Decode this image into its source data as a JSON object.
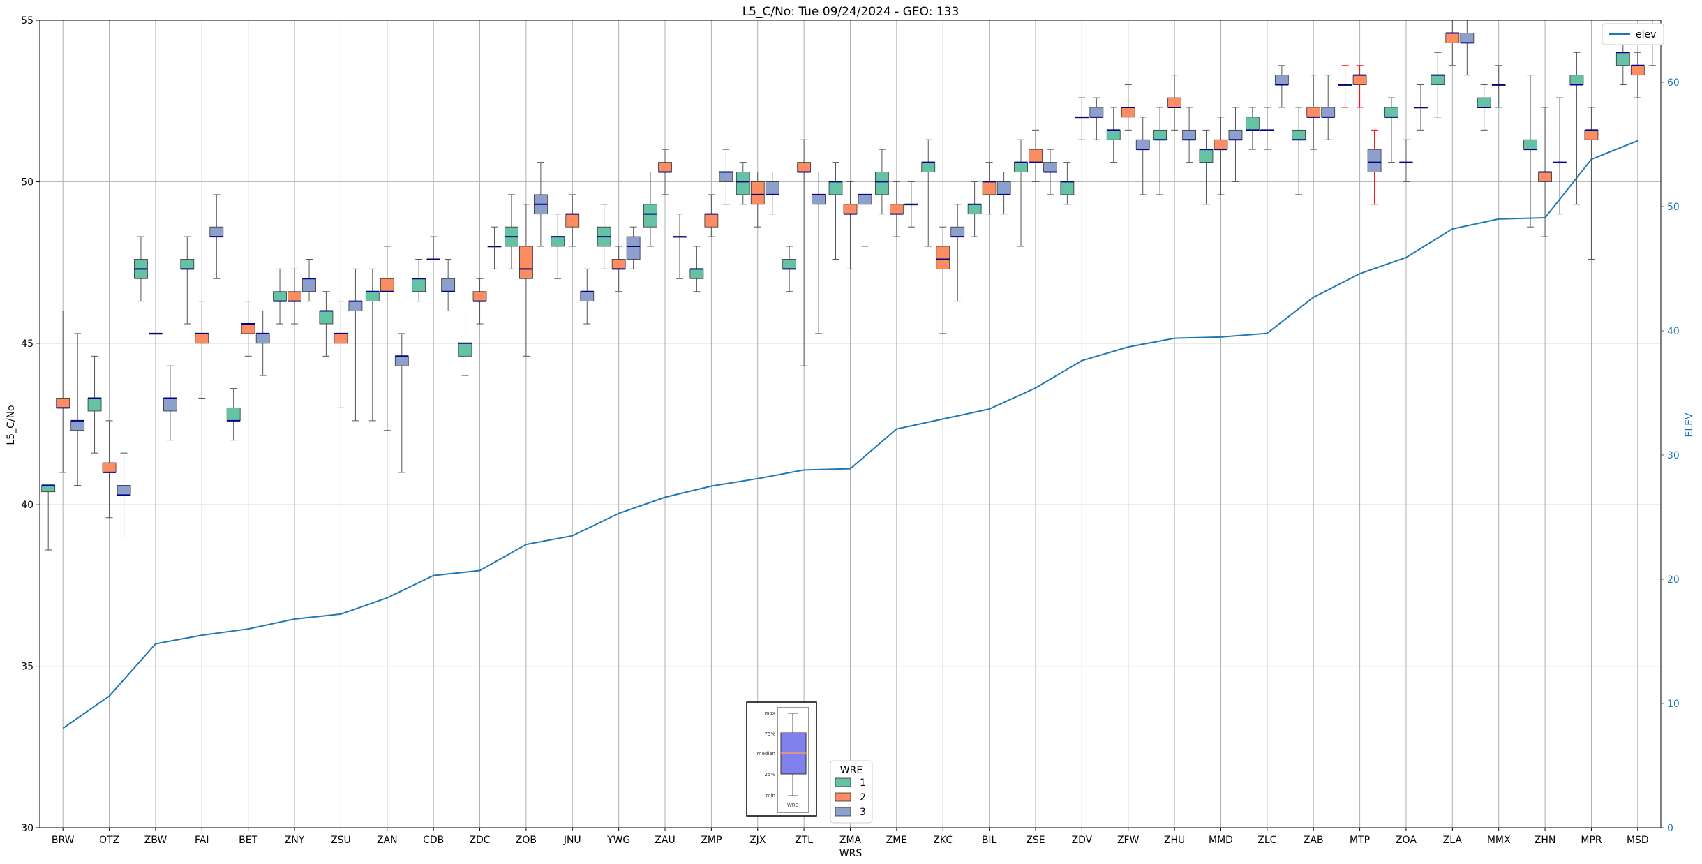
{
  "chart_data": {
    "type": "box",
    "title": "L5_C/No: Tue 09/24/2024 - GEO: 133",
    "xlabel": "WRS",
    "ylabel": "L5_C/No",
    "y2label": "ELEV",
    "ylim": [
      30,
      55
    ],
    "y2lim": [
      0,
      65
    ],
    "yticks": [
      30,
      35,
      40,
      45,
      50,
      55
    ],
    "y2ticks": [
      0,
      10,
      20,
      30,
      40,
      50,
      60
    ],
    "grid": true,
    "categories": [
      "BRW",
      "OTZ",
      "ZBW",
      "FAI",
      "BET",
      "ZNY",
      "ZSU",
      "ZAN",
      "CDB",
      "ZDC",
      "ZOB",
      "JNU",
      "YWG",
      "ZAU",
      "ZMP",
      "ZJX",
      "ZTL",
      "ZMA",
      "ZME",
      "ZKC",
      "BIL",
      "ZSE",
      "ZDV",
      "ZFW",
      "ZHU",
      "MMD",
      "ZLC",
      "ZAB",
      "MTP",
      "ZOA",
      "ZLA",
      "MMX",
      "ZHN",
      "MPR",
      "MSD"
    ],
    "wre_colors": {
      "1": "#66c2a5",
      "2": "#fc8d62",
      "3": "#8da0cb"
    },
    "median_color": "#00008b",
    "outlier_whisker_color": "#ff0000",
    "boxes": [
      {
        "station": "BRW",
        "wre": 1,
        "min": 38.6,
        "q1": 40.4,
        "median": 40.6,
        "q3": 40.6,
        "max": 40.6
      },
      {
        "station": "BRW",
        "wre": 2,
        "min": 41.0,
        "q1": 43.0,
        "median": 43.0,
        "q3": 43.3,
        "max": 46.0
      },
      {
        "station": "BRW",
        "wre": 3,
        "min": 40.6,
        "q1": 42.3,
        "median": 42.6,
        "q3": 42.6,
        "max": 45.3
      },
      {
        "station": "OTZ",
        "wre": 1,
        "min": 41.6,
        "q1": 42.9,
        "median": 43.3,
        "q3": 43.3,
        "max": 44.6
      },
      {
        "station": "OTZ",
        "wre": 2,
        "min": 39.6,
        "q1": 41.0,
        "median": 41.0,
        "q3": 41.3,
        "max": 42.6
      },
      {
        "station": "OTZ",
        "wre": 3,
        "min": 39.0,
        "q1": 40.3,
        "median": 40.3,
        "q3": 40.6,
        "max": 41.6
      },
      {
        "station": "ZBW",
        "wre": 1,
        "min": 46.3,
        "q1": 47.0,
        "median": 47.3,
        "q3": 47.6,
        "max": 48.3
      },
      {
        "station": "ZBW",
        "wre": 2,
        "min": 45.3,
        "q1": 45.3,
        "median": 45.3,
        "q3": 45.3,
        "max": 45.3
      },
      {
        "station": "ZBW",
        "wre": 3,
        "min": 42.0,
        "q1": 42.9,
        "median": 43.3,
        "q3": 43.3,
        "max": 44.3
      },
      {
        "station": "FAI",
        "wre": 1,
        "min": 45.6,
        "q1": 47.3,
        "median": 47.3,
        "q3": 47.6,
        "max": 48.3
      },
      {
        "station": "FAI",
        "wre": 2,
        "min": 43.3,
        "q1": 45.0,
        "median": 45.3,
        "q3": 45.3,
        "max": 46.3
      },
      {
        "station": "FAI",
        "wre": 3,
        "min": 47.0,
        "q1": 48.3,
        "median": 48.3,
        "q3": 48.6,
        "max": 49.6
      },
      {
        "station": "BET",
        "wre": 1,
        "min": 42.0,
        "q1": 42.6,
        "median": 42.6,
        "q3": 43.0,
        "max": 43.6
      },
      {
        "station": "BET",
        "wre": 2,
        "min": 44.6,
        "q1": 45.3,
        "median": 45.6,
        "q3": 45.6,
        "max": 46.3
      },
      {
        "station": "BET",
        "wre": 3,
        "min": 44.0,
        "q1": 45.0,
        "median": 45.3,
        "q3": 45.3,
        "max": 46.0
      },
      {
        "station": "ZNY",
        "wre": 1,
        "min": 45.6,
        "q1": 46.3,
        "median": 46.3,
        "q3": 46.6,
        "max": 47.3
      },
      {
        "station": "ZNY",
        "wre": 2,
        "min": 45.6,
        "q1": 46.3,
        "median": 46.3,
        "q3": 46.6,
        "max": 47.3
      },
      {
        "station": "ZNY",
        "wre": 3,
        "min": 46.3,
        "q1": 46.6,
        "median": 47.0,
        "q3": 47.0,
        "max": 47.6
      },
      {
        "station": "ZSU",
        "wre": 1,
        "min": 44.6,
        "q1": 45.6,
        "median": 46.0,
        "q3": 46.0,
        "max": 46.6
      },
      {
        "station": "ZSU",
        "wre": 2,
        "min": 43.0,
        "q1": 45.0,
        "median": 45.3,
        "q3": 45.3,
        "max": 46.3
      },
      {
        "station": "ZSU",
        "wre": 3,
        "min": 42.6,
        "q1": 46.0,
        "median": 46.3,
        "q3": 46.3,
        "max": 47.3
      },
      {
        "station": "ZAN",
        "wre": 1,
        "min": 42.6,
        "q1": 46.3,
        "median": 46.6,
        "q3": 46.6,
        "max": 47.3
      },
      {
        "station": "ZAN",
        "wre": 2,
        "min": 42.3,
        "q1": 46.6,
        "median": 46.6,
        "q3": 47.0,
        "max": 48.0
      },
      {
        "station": "ZAN",
        "wre": 3,
        "min": 41.0,
        "q1": 44.3,
        "median": 44.6,
        "q3": 44.6,
        "max": 45.3
      },
      {
        "station": "CDB",
        "wre": 1,
        "min": 46.3,
        "q1": 46.6,
        "median": 47.0,
        "q3": 47.0,
        "max": 47.6
      },
      {
        "station": "CDB",
        "wre": 2,
        "min": 47.6,
        "q1": 47.6,
        "median": 47.6,
        "q3": 47.6,
        "max": 48.3
      },
      {
        "station": "CDB",
        "wre": 3,
        "min": 46.0,
        "q1": 46.6,
        "median": 46.6,
        "q3": 47.0,
        "max": 47.6
      },
      {
        "station": "ZDC",
        "wre": 1,
        "min": 44.0,
        "q1": 44.6,
        "median": 45.0,
        "q3": 45.0,
        "max": 46.0
      },
      {
        "station": "ZDC",
        "wre": 2,
        "min": 45.6,
        "q1": 46.3,
        "median": 46.3,
        "q3": 46.6,
        "max": 47.0
      },
      {
        "station": "ZDC",
        "wre": 3,
        "min": 47.3,
        "q1": 48.0,
        "median": 48.0,
        "q3": 48.0,
        "max": 48.6
      },
      {
        "station": "ZOB",
        "wre": 1,
        "min": 47.3,
        "q1": 48.0,
        "median": 48.3,
        "q3": 48.6,
        "max": 49.6
      },
      {
        "station": "ZOB",
        "wre": 2,
        "min": 44.6,
        "q1": 47.0,
        "median": 47.3,
        "q3": 48.0,
        "max": 49.3
      },
      {
        "station": "ZOB",
        "wre": 3,
        "min": 48.0,
        "q1": 49.0,
        "median": 49.3,
        "q3": 49.6,
        "max": 50.6
      },
      {
        "station": "JNU",
        "wre": 1,
        "min": 47.0,
        "q1": 48.0,
        "median": 48.3,
        "q3": 48.3,
        "max": 49.0
      },
      {
        "station": "JNU",
        "wre": 2,
        "min": 48.0,
        "q1": 48.6,
        "median": 49.0,
        "q3": 49.0,
        "max": 49.6
      },
      {
        "station": "JNU",
        "wre": 3,
        "min": 45.6,
        "q1": 46.3,
        "median": 46.6,
        "q3": 46.6,
        "max": 47.3
      },
      {
        "station": "YWG",
        "wre": 1,
        "min": 47.3,
        "q1": 48.0,
        "median": 48.3,
        "q3": 48.6,
        "max": 49.3
      },
      {
        "station": "YWG",
        "wre": 2,
        "min": 46.6,
        "q1": 47.3,
        "median": 47.3,
        "q3": 47.6,
        "max": 48.0
      },
      {
        "station": "YWG",
        "wre": 3,
        "min": 47.3,
        "q1": 47.6,
        "median": 48.0,
        "q3": 48.3,
        "max": 48.6
      },
      {
        "station": "ZAU",
        "wre": 1,
        "min": 48.0,
        "q1": 48.6,
        "median": 49.0,
        "q3": 49.3,
        "max": 50.3
      },
      {
        "station": "ZAU",
        "wre": 2,
        "min": 49.6,
        "q1": 50.3,
        "median": 50.3,
        "q3": 50.6,
        "max": 51.0
      },
      {
        "station": "ZAU",
        "wre": 3,
        "min": 47.0,
        "q1": 48.3,
        "median": 48.3,
        "q3": 48.3,
        "max": 49.0
      },
      {
        "station": "ZMP",
        "wre": 1,
        "min": 46.6,
        "q1": 47.0,
        "median": 47.3,
        "q3": 47.3,
        "max": 48.0
      },
      {
        "station": "ZMP",
        "wre": 2,
        "min": 48.3,
        "q1": 48.6,
        "median": 49.0,
        "q3": 49.0,
        "max": 49.6
      },
      {
        "station": "ZMP",
        "wre": 3,
        "min": 49.3,
        "q1": 50.0,
        "median": 50.3,
        "q3": 50.3,
        "max": 51.0
      },
      {
        "station": "ZJX",
        "wre": 1,
        "min": 49.3,
        "q1": 49.6,
        "median": 50.0,
        "q3": 50.3,
        "max": 50.6
      },
      {
        "station": "ZJX",
        "wre": 2,
        "min": 48.6,
        "q1": 49.3,
        "median": 49.6,
        "q3": 50.0,
        "max": 50.3
      },
      {
        "station": "ZJX",
        "wre": 3,
        "min": 49.0,
        "q1": 49.6,
        "median": 49.6,
        "q3": 50.0,
        "max": 50.3
      },
      {
        "station": "ZTL",
        "wre": 1,
        "min": 46.6,
        "q1": 47.3,
        "median": 47.3,
        "q3": 47.6,
        "max": 48.0
      },
      {
        "station": "ZTL",
        "wre": 2,
        "min": 44.3,
        "q1": 50.3,
        "median": 50.3,
        "q3": 50.6,
        "max": 51.3
      },
      {
        "station": "ZTL",
        "wre": 3,
        "min": 45.3,
        "q1": 49.3,
        "median": 49.6,
        "q3": 49.6,
        "max": 50.3
      },
      {
        "station": "ZMA",
        "wre": 1,
        "min": 47.6,
        "q1": 49.6,
        "median": 50.0,
        "q3": 50.0,
        "max": 50.6
      },
      {
        "station": "ZMA",
        "wre": 2,
        "min": 47.3,
        "q1": 49.0,
        "median": 49.0,
        "q3": 49.3,
        "max": 50.0
      },
      {
        "station": "ZMA",
        "wre": 3,
        "min": 48.0,
        "q1": 49.3,
        "median": 49.6,
        "q3": 49.6,
        "max": 50.3
      },
      {
        "station": "ZME",
        "wre": 1,
        "min": 49.0,
        "q1": 49.6,
        "median": 50.0,
        "q3": 50.3,
        "max": 51.0
      },
      {
        "station": "ZME",
        "wre": 2,
        "min": 48.3,
        "q1": 49.0,
        "median": 49.0,
        "q3": 49.3,
        "max": 50.0
      },
      {
        "station": "ZME",
        "wre": 3,
        "min": 48.6,
        "q1": 49.3,
        "median": 49.3,
        "q3": 49.3,
        "max": 50.0
      },
      {
        "station": "ZKC",
        "wre": 1,
        "min": 48.0,
        "q1": 50.3,
        "median": 50.6,
        "q3": 50.6,
        "max": 51.3
      },
      {
        "station": "ZKC",
        "wre": 2,
        "min": 45.3,
        "q1": 47.3,
        "median": 47.6,
        "q3": 48.0,
        "max": 48.6
      },
      {
        "station": "ZKC",
        "wre": 3,
        "min": 46.3,
        "q1": 48.3,
        "median": 48.3,
        "q3": 48.6,
        "max": 49.3
      },
      {
        "station": "BIL",
        "wre": 1,
        "min": 48.3,
        "q1": 49.0,
        "median": 49.3,
        "q3": 49.3,
        "max": 50.0
      },
      {
        "station": "BIL",
        "wre": 2,
        "min": 49.0,
        "q1": 49.6,
        "median": 50.0,
        "q3": 50.0,
        "max": 50.6
      },
      {
        "station": "BIL",
        "wre": 3,
        "min": 49.0,
        "q1": 49.6,
        "median": 49.6,
        "q3": 50.0,
        "max": 50.3
      },
      {
        "station": "ZSE",
        "wre": 1,
        "min": 48.0,
        "q1": 50.3,
        "median": 50.6,
        "q3": 50.6,
        "max": 51.3
      },
      {
        "station": "ZSE",
        "wre": 2,
        "min": 50.0,
        "q1": 50.6,
        "median": 50.6,
        "q3": 51.0,
        "max": 51.6
      },
      {
        "station": "ZSE",
        "wre": 3,
        "min": 49.6,
        "q1": 50.3,
        "median": 50.3,
        "q3": 50.6,
        "max": 51.0
      },
      {
        "station": "ZDV",
        "wre": 1,
        "min": 49.3,
        "q1": 49.6,
        "median": 50.0,
        "q3": 50.0,
        "max": 50.6
      },
      {
        "station": "ZDV",
        "wre": 2,
        "min": 51.3,
        "q1": 52.0,
        "median": 52.0,
        "q3": 52.0,
        "max": 52.6
      },
      {
        "station": "ZDV",
        "wre": 3,
        "min": 51.3,
        "q1": 52.0,
        "median": 52.0,
        "q3": 52.3,
        "max": 52.6
      },
      {
        "station": "ZFW",
        "wre": 1,
        "min": 50.6,
        "q1": 51.3,
        "median": 51.6,
        "q3": 51.6,
        "max": 52.3
      },
      {
        "station": "ZFW",
        "wre": 2,
        "min": 51.6,
        "q1": 52.0,
        "median": 52.3,
        "q3": 52.3,
        "max": 53.0
      },
      {
        "station": "ZFW",
        "wre": 3,
        "min": 49.6,
        "q1": 51.0,
        "median": 51.0,
        "q3": 51.3,
        "max": 52.0
      },
      {
        "station": "ZHU",
        "wre": 1,
        "min": 49.6,
        "q1": 51.3,
        "median": 51.3,
        "q3": 51.6,
        "max": 52.3
      },
      {
        "station": "ZHU",
        "wre": 2,
        "min": 51.6,
        "q1": 52.3,
        "median": 52.3,
        "q3": 52.6,
        "max": 53.3
      },
      {
        "station": "ZHU",
        "wre": 3,
        "min": 50.6,
        "q1": 51.3,
        "median": 51.3,
        "q3": 51.6,
        "max": 52.3
      },
      {
        "station": "MMD",
        "wre": 1,
        "min": 49.3,
        "q1": 50.6,
        "median": 51.0,
        "q3": 51.0,
        "max": 51.6
      },
      {
        "station": "MMD",
        "wre": 2,
        "min": 49.6,
        "q1": 51.0,
        "median": 51.0,
        "q3": 51.3,
        "max": 52.0
      },
      {
        "station": "MMD",
        "wre": 3,
        "min": 50.0,
        "q1": 51.3,
        "median": 51.3,
        "q3": 51.6,
        "max": 52.3
      },
      {
        "station": "ZLC",
        "wre": 1,
        "min": 51.0,
        "q1": 51.6,
        "median": 51.6,
        "q3": 52.0,
        "max": 52.3
      },
      {
        "station": "ZLC",
        "wre": 2,
        "min": 51.0,
        "q1": 51.6,
        "median": 51.6,
        "q3": 51.6,
        "max": 52.3
      },
      {
        "station": "ZLC",
        "wre": 3,
        "min": 52.3,
        "q1": 53.0,
        "median": 53.0,
        "q3": 53.3,
        "max": 53.6
      },
      {
        "station": "ZAB",
        "wre": 1,
        "min": 49.6,
        "q1": 51.3,
        "median": 51.3,
        "q3": 51.6,
        "max": 52.3
      },
      {
        "station": "ZAB",
        "wre": 2,
        "min": 51.0,
        "q1": 52.0,
        "median": 52.0,
        "q3": 52.3,
        "max": 53.3
      },
      {
        "station": "ZAB",
        "wre": 3,
        "min": 51.3,
        "q1": 52.0,
        "median": 52.0,
        "q3": 52.3,
        "max": 53.3
      },
      {
        "station": "MTP",
        "wre": 1,
        "min": 52.3,
        "q1": 53.0,
        "median": 53.0,
        "q3": 53.0,
        "max": 53.6,
        "red": true
      },
      {
        "station": "MTP",
        "wre": 2,
        "min": 52.3,
        "q1": 53.0,
        "median": 53.3,
        "q3": 53.3,
        "max": 53.6,
        "red": true
      },
      {
        "station": "MTP",
        "wre": 3,
        "min": 49.3,
        "q1": 50.3,
        "median": 50.6,
        "q3": 51.0,
        "max": 51.6,
        "red": true
      },
      {
        "station": "ZOA",
        "wre": 1,
        "min": 50.6,
        "q1": 52.0,
        "median": 52.0,
        "q3": 52.3,
        "max": 52.6
      },
      {
        "station": "ZOA",
        "wre": 2,
        "min": 50.0,
        "q1": 50.6,
        "median": 50.6,
        "q3": 50.6,
        "max": 51.3
      },
      {
        "station": "ZOA",
        "wre": 3,
        "min": 51.6,
        "q1": 52.3,
        "median": 52.3,
        "q3": 52.3,
        "max": 53.0
      },
      {
        "station": "ZLA",
        "wre": 1,
        "min": 52.0,
        "q1": 53.0,
        "median": 53.3,
        "q3": 53.3,
        "max": 54.0
      },
      {
        "station": "ZLA",
        "wre": 2,
        "min": 53.6,
        "q1": 54.3,
        "median": 54.6,
        "q3": 54.6,
        "max": 55.0
      },
      {
        "station": "ZLA",
        "wre": 3,
        "min": 53.3,
        "q1": 54.3,
        "median": 54.3,
        "q3": 54.6,
        "max": 55.0
      },
      {
        "station": "MMX",
        "wre": 1,
        "min": 51.6,
        "q1": 52.3,
        "median": 52.3,
        "q3": 52.6,
        "max": 53.0
      },
      {
        "station": "MMX",
        "wre": 2,
        "min": 52.3,
        "q1": 53.0,
        "median": 53.0,
        "q3": 53.0,
        "max": 53.6
      },
      {
        "station": "ZHN",
        "wre": 1,
        "min": 48.6,
        "q1": 51.0,
        "median": 51.0,
        "q3": 51.3,
        "max": 53.3
      },
      {
        "station": "ZHN",
        "wre": 2,
        "min": 48.3,
        "q1": 50.0,
        "median": 50.3,
        "q3": 50.3,
        "max": 52.3
      },
      {
        "station": "ZHN",
        "wre": 3,
        "min": 49.0,
        "q1": 50.6,
        "median": 50.6,
        "q3": 50.6,
        "max": 52.6
      },
      {
        "station": "MPR",
        "wre": 1,
        "min": 49.3,
        "q1": 53.0,
        "median": 53.0,
        "q3": 53.3,
        "max": 54.0
      },
      {
        "station": "MPR",
        "wre": 2,
        "min": 47.6,
        "q1": 51.3,
        "median": 51.6,
        "q3": 51.6,
        "max": 52.3
      },
      {
        "station": "MSD",
        "wre": 1,
        "min": 53.0,
        "q1": 53.6,
        "median": 54.0,
        "q3": 54.0,
        "max": 54.6
      },
      {
        "station": "MSD",
        "wre": 2,
        "min": 52.6,
        "q1": 53.3,
        "median": 53.6,
        "q3": 53.6,
        "max": 54.0
      },
      {
        "station": "MSD",
        "wre": 3,
        "min": 53.6,
        "q1": 54.3,
        "median": 54.3,
        "q3": 54.6,
        "max": 55.0
      }
    ],
    "elev": {
      "name": "elev",
      "color": "#1f77b4",
      "values": [
        8.0,
        10.6,
        14.8,
        15.5,
        16.0,
        16.8,
        17.2,
        18.5,
        20.3,
        20.7,
        22.8,
        23.5,
        25.3,
        26.6,
        27.5,
        28.1,
        28.8,
        28.9,
        32.1,
        32.9,
        33.7,
        35.4,
        37.6,
        38.7,
        39.4,
        39.5,
        39.8,
        42.7,
        44.6,
        45.9,
        48.2,
        49.0,
        49.1,
        53.8,
        55.3
      ]
    },
    "legend_wre": {
      "title": "WRE",
      "entries": [
        "1",
        "2",
        "3"
      ],
      "placement": "bottom-center"
    },
    "legend_elev": {
      "label": "elev",
      "placement": "top-right"
    },
    "inset": {
      "labels": [
        "max",
        "75%",
        "median",
        "25%",
        "min"
      ],
      "caption": "WRS"
    }
  }
}
